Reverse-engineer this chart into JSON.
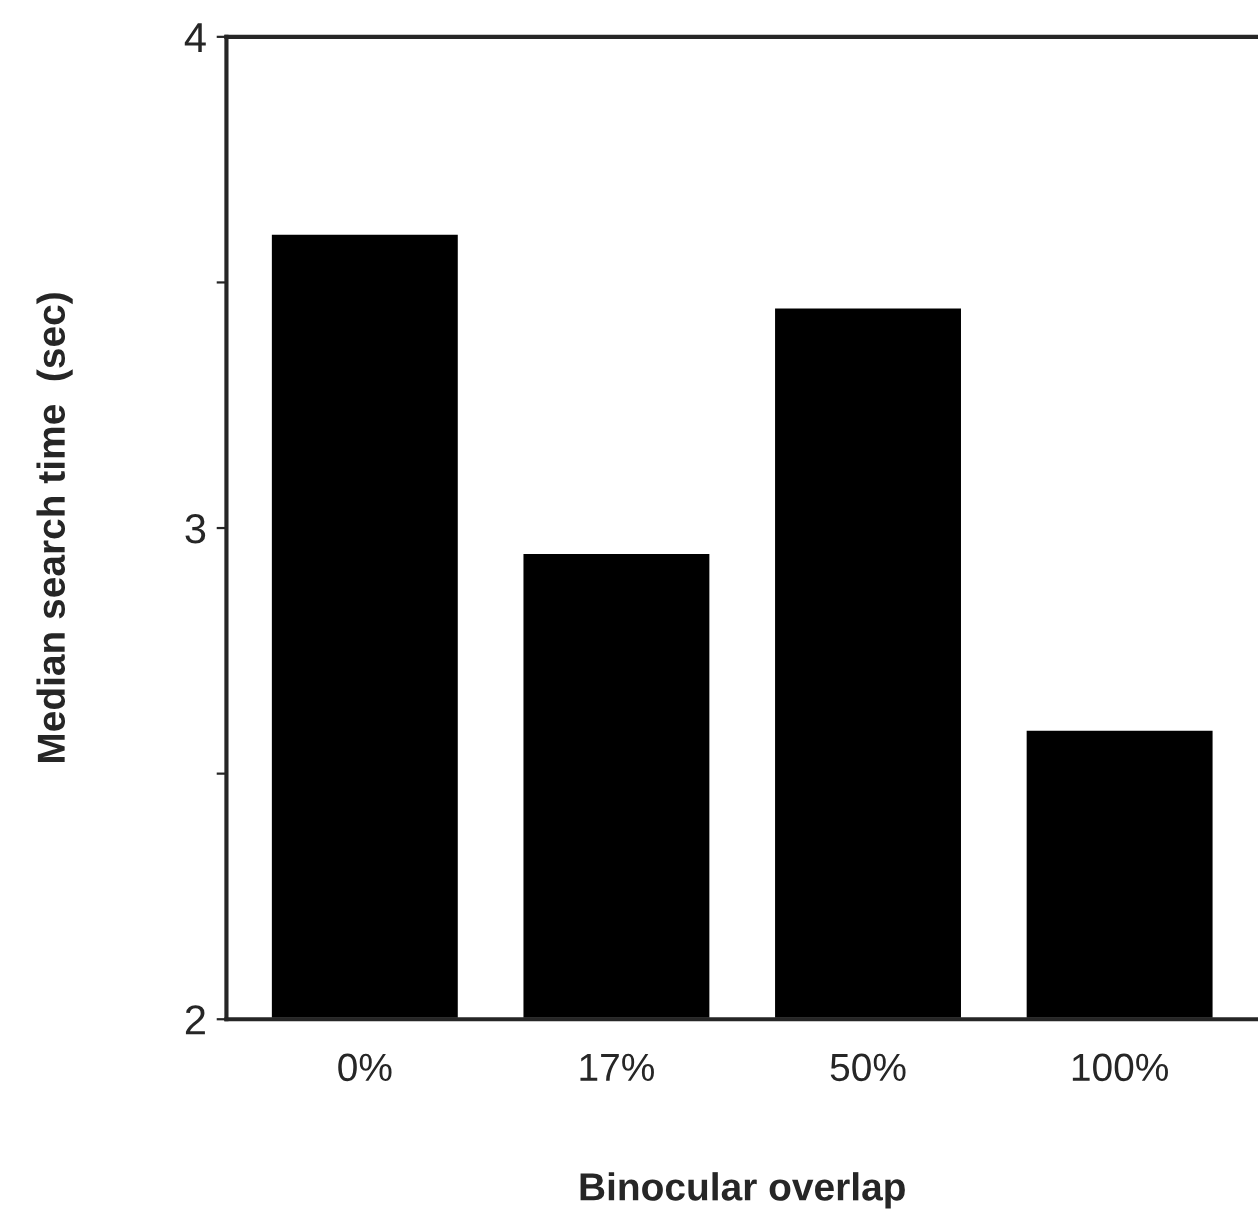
{
  "chart_data": {
    "type": "bar",
    "xlabel": "Binocular overlap",
    "ylabel": "Median search time  (sec)",
    "categories": [
      "0%",
      "17%",
      "50%",
      "100%"
    ],
    "values": [
      3.6,
      2.95,
      3.45,
      2.59
    ],
    "color": "#000000",
    "ylim": [
      2,
      4
    ],
    "yticks": [
      2,
      {
        "value": 2.5,
        "label": null
      },
      3,
      {
        "value": 3.5,
        "label": null
      },
      4
    ],
    "grid": false,
    "legend": false
  }
}
